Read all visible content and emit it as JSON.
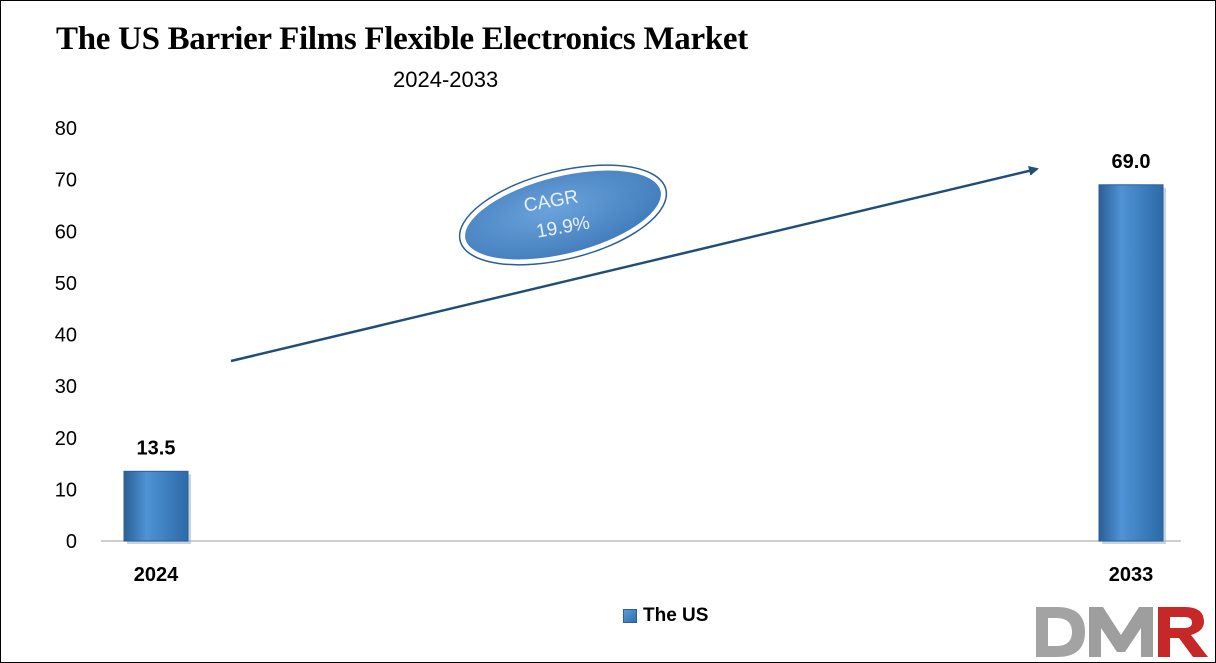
{
  "chart_data": {
    "type": "bar",
    "title": "The US Barrier Films Flexible Electronics Market",
    "subtitle": "2024-2033",
    "categories": [
      "2024",
      "2033"
    ],
    "series": [
      {
        "name": "The US",
        "values": [
          13.5,
          69.0
        ],
        "labels": [
          "13.5",
          "69.0"
        ]
      }
    ],
    "ylim": [
      0,
      80
    ],
    "yticks": [
      "0",
      "10",
      "20",
      "30",
      "40",
      "50",
      "60",
      "70",
      "80"
    ],
    "grid": false,
    "legend_position": "bottom",
    "annotation": {
      "line1": "CAGR",
      "line2": "19.9%"
    },
    "colors": {
      "bar": "#3a7ec2",
      "bar_dark": "#2b5f96",
      "arrow": "#1f4e79",
      "ellipse": "#4a86c4"
    }
  },
  "logo": {
    "text": "DMR",
    "colors": [
      "#9e9e9e",
      "#c62828"
    ]
  }
}
